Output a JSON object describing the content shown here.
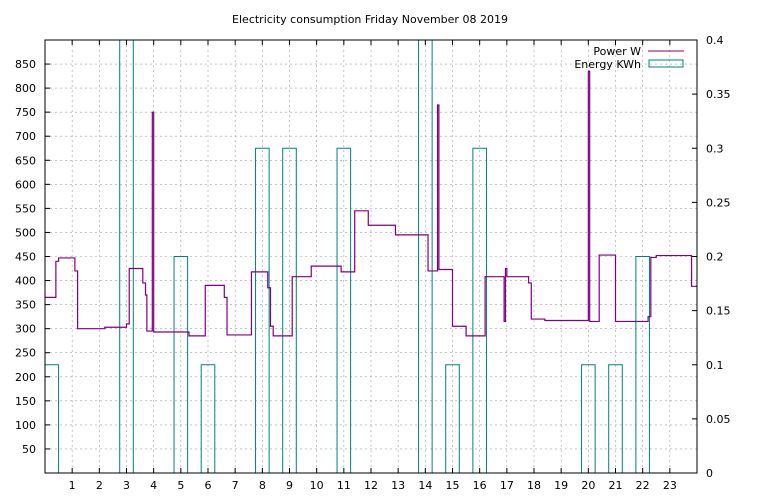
{
  "chart_data": {
    "type": "line",
    "title": "Electricity consumption Friday November 08 2019",
    "xlim": [
      0,
      24
    ],
    "ylim_left": [
      0,
      900
    ],
    "ylim_right": [
      0,
      0.4
    ],
    "x_ticks": [
      1,
      2,
      3,
      4,
      5,
      6,
      7,
      8,
      9,
      10,
      11,
      12,
      13,
      14,
      15,
      16,
      17,
      18,
      19,
      20,
      21,
      22,
      23
    ],
    "y_ticks_left": [
      50,
      100,
      150,
      200,
      250,
      300,
      350,
      400,
      450,
      500,
      550,
      600,
      650,
      700,
      750,
      800,
      850
    ],
    "y_ticks_right": [
      0,
      0.05,
      0.1,
      0.15,
      0.2,
      0.25,
      0.3,
      0.35,
      0.4
    ],
    "grid": true,
    "legend_position": "top-right",
    "colors": {
      "power": "#800080",
      "energy": "#008080",
      "grid": "#a0a0a0"
    },
    "series": [
      {
        "name": "Power W",
        "axis": "left",
        "style": "step",
        "points": [
          [
            0,
            365
          ],
          [
            0.4,
            365
          ],
          [
            0.4,
            440
          ],
          [
            0.5,
            440
          ],
          [
            0.5,
            447
          ],
          [
            1.1,
            447
          ],
          [
            1.1,
            420
          ],
          [
            1.2,
            420
          ],
          [
            1.2,
            300
          ],
          [
            2.2,
            300
          ],
          [
            2.2,
            303
          ],
          [
            3.0,
            303
          ],
          [
            3.0,
            310
          ],
          [
            3.1,
            310
          ],
          [
            3.1,
            425
          ],
          [
            3.6,
            425
          ],
          [
            3.6,
            395
          ],
          [
            3.7,
            395
          ],
          [
            3.7,
            370
          ],
          [
            3.75,
            370
          ],
          [
            3.75,
            295
          ],
          [
            3.95,
            295
          ],
          [
            3.95,
            750
          ],
          [
            4.0,
            750
          ],
          [
            4.0,
            293
          ],
          [
            5.3,
            293
          ],
          [
            5.3,
            285
          ],
          [
            5.9,
            285
          ],
          [
            5.9,
            390
          ],
          [
            6.6,
            390
          ],
          [
            6.6,
            365
          ],
          [
            6.7,
            365
          ],
          [
            6.7,
            287
          ],
          [
            7.6,
            287
          ],
          [
            7.6,
            418
          ],
          [
            8.2,
            418
          ],
          [
            8.2,
            385
          ],
          [
            8.3,
            385
          ],
          [
            8.3,
            305
          ],
          [
            8.4,
            305
          ],
          [
            8.4,
            285
          ],
          [
            9.1,
            285
          ],
          [
            9.1,
            408
          ],
          [
            9.8,
            408
          ],
          [
            9.8,
            430
          ],
          [
            10.9,
            430
          ],
          [
            10.9,
            418
          ],
          [
            11.4,
            418
          ],
          [
            11.4,
            545
          ],
          [
            11.9,
            545
          ],
          [
            11.9,
            515
          ],
          [
            12.9,
            515
          ],
          [
            12.9,
            495
          ],
          [
            14.1,
            495
          ],
          [
            14.1,
            420
          ],
          [
            14.45,
            420
          ],
          [
            14.45,
            765
          ],
          [
            14.5,
            765
          ],
          [
            14.5,
            423
          ],
          [
            15.0,
            423
          ],
          [
            15.0,
            305
          ],
          [
            15.5,
            305
          ],
          [
            15.5,
            285
          ],
          [
            16.2,
            285
          ],
          [
            16.2,
            408
          ],
          [
            16.9,
            408
          ],
          [
            16.9,
            315
          ],
          [
            16.95,
            315
          ],
          [
            16.95,
            425
          ],
          [
            17.0,
            425
          ],
          [
            17.0,
            408
          ],
          [
            17.8,
            408
          ],
          [
            17.8,
            395
          ],
          [
            17.9,
            395
          ],
          [
            17.9,
            320
          ],
          [
            18.4,
            320
          ],
          [
            18.4,
            317
          ],
          [
            20.0,
            317
          ],
          [
            20.0,
            835
          ],
          [
            20.05,
            835
          ],
          [
            20.05,
            315
          ],
          [
            20.4,
            315
          ],
          [
            20.4,
            453
          ],
          [
            21.0,
            453
          ],
          [
            21.0,
            315
          ],
          [
            22.2,
            315
          ],
          [
            22.2,
            325
          ],
          [
            22.3,
            325
          ],
          [
            22.3,
            448
          ],
          [
            22.5,
            448
          ],
          [
            22.5,
            452
          ],
          [
            23.8,
            452
          ],
          [
            23.8,
            388
          ],
          [
            24,
            388
          ]
        ]
      },
      {
        "name": "Energy KWh",
        "axis": "right",
        "style": "bars",
        "bars": [
          [
            -0.5,
            0.5,
            0.1
          ],
          [
            2.75,
            3.25,
            0.4
          ],
          [
            4.75,
            5.25,
            0.2
          ],
          [
            5.75,
            6.25,
            0.1
          ],
          [
            7.75,
            8.25,
            0.3
          ],
          [
            8.75,
            9.25,
            0.3
          ],
          [
            10.75,
            11.25,
            0.3
          ],
          [
            13.75,
            14.25,
            0.4
          ],
          [
            14.75,
            15.25,
            0.1
          ],
          [
            15.75,
            16.25,
            0.3
          ],
          [
            19.75,
            20.25,
            0.1
          ],
          [
            20.75,
            21.25,
            0.1
          ],
          [
            21.75,
            22.25,
            0.2
          ]
        ]
      }
    ]
  }
}
